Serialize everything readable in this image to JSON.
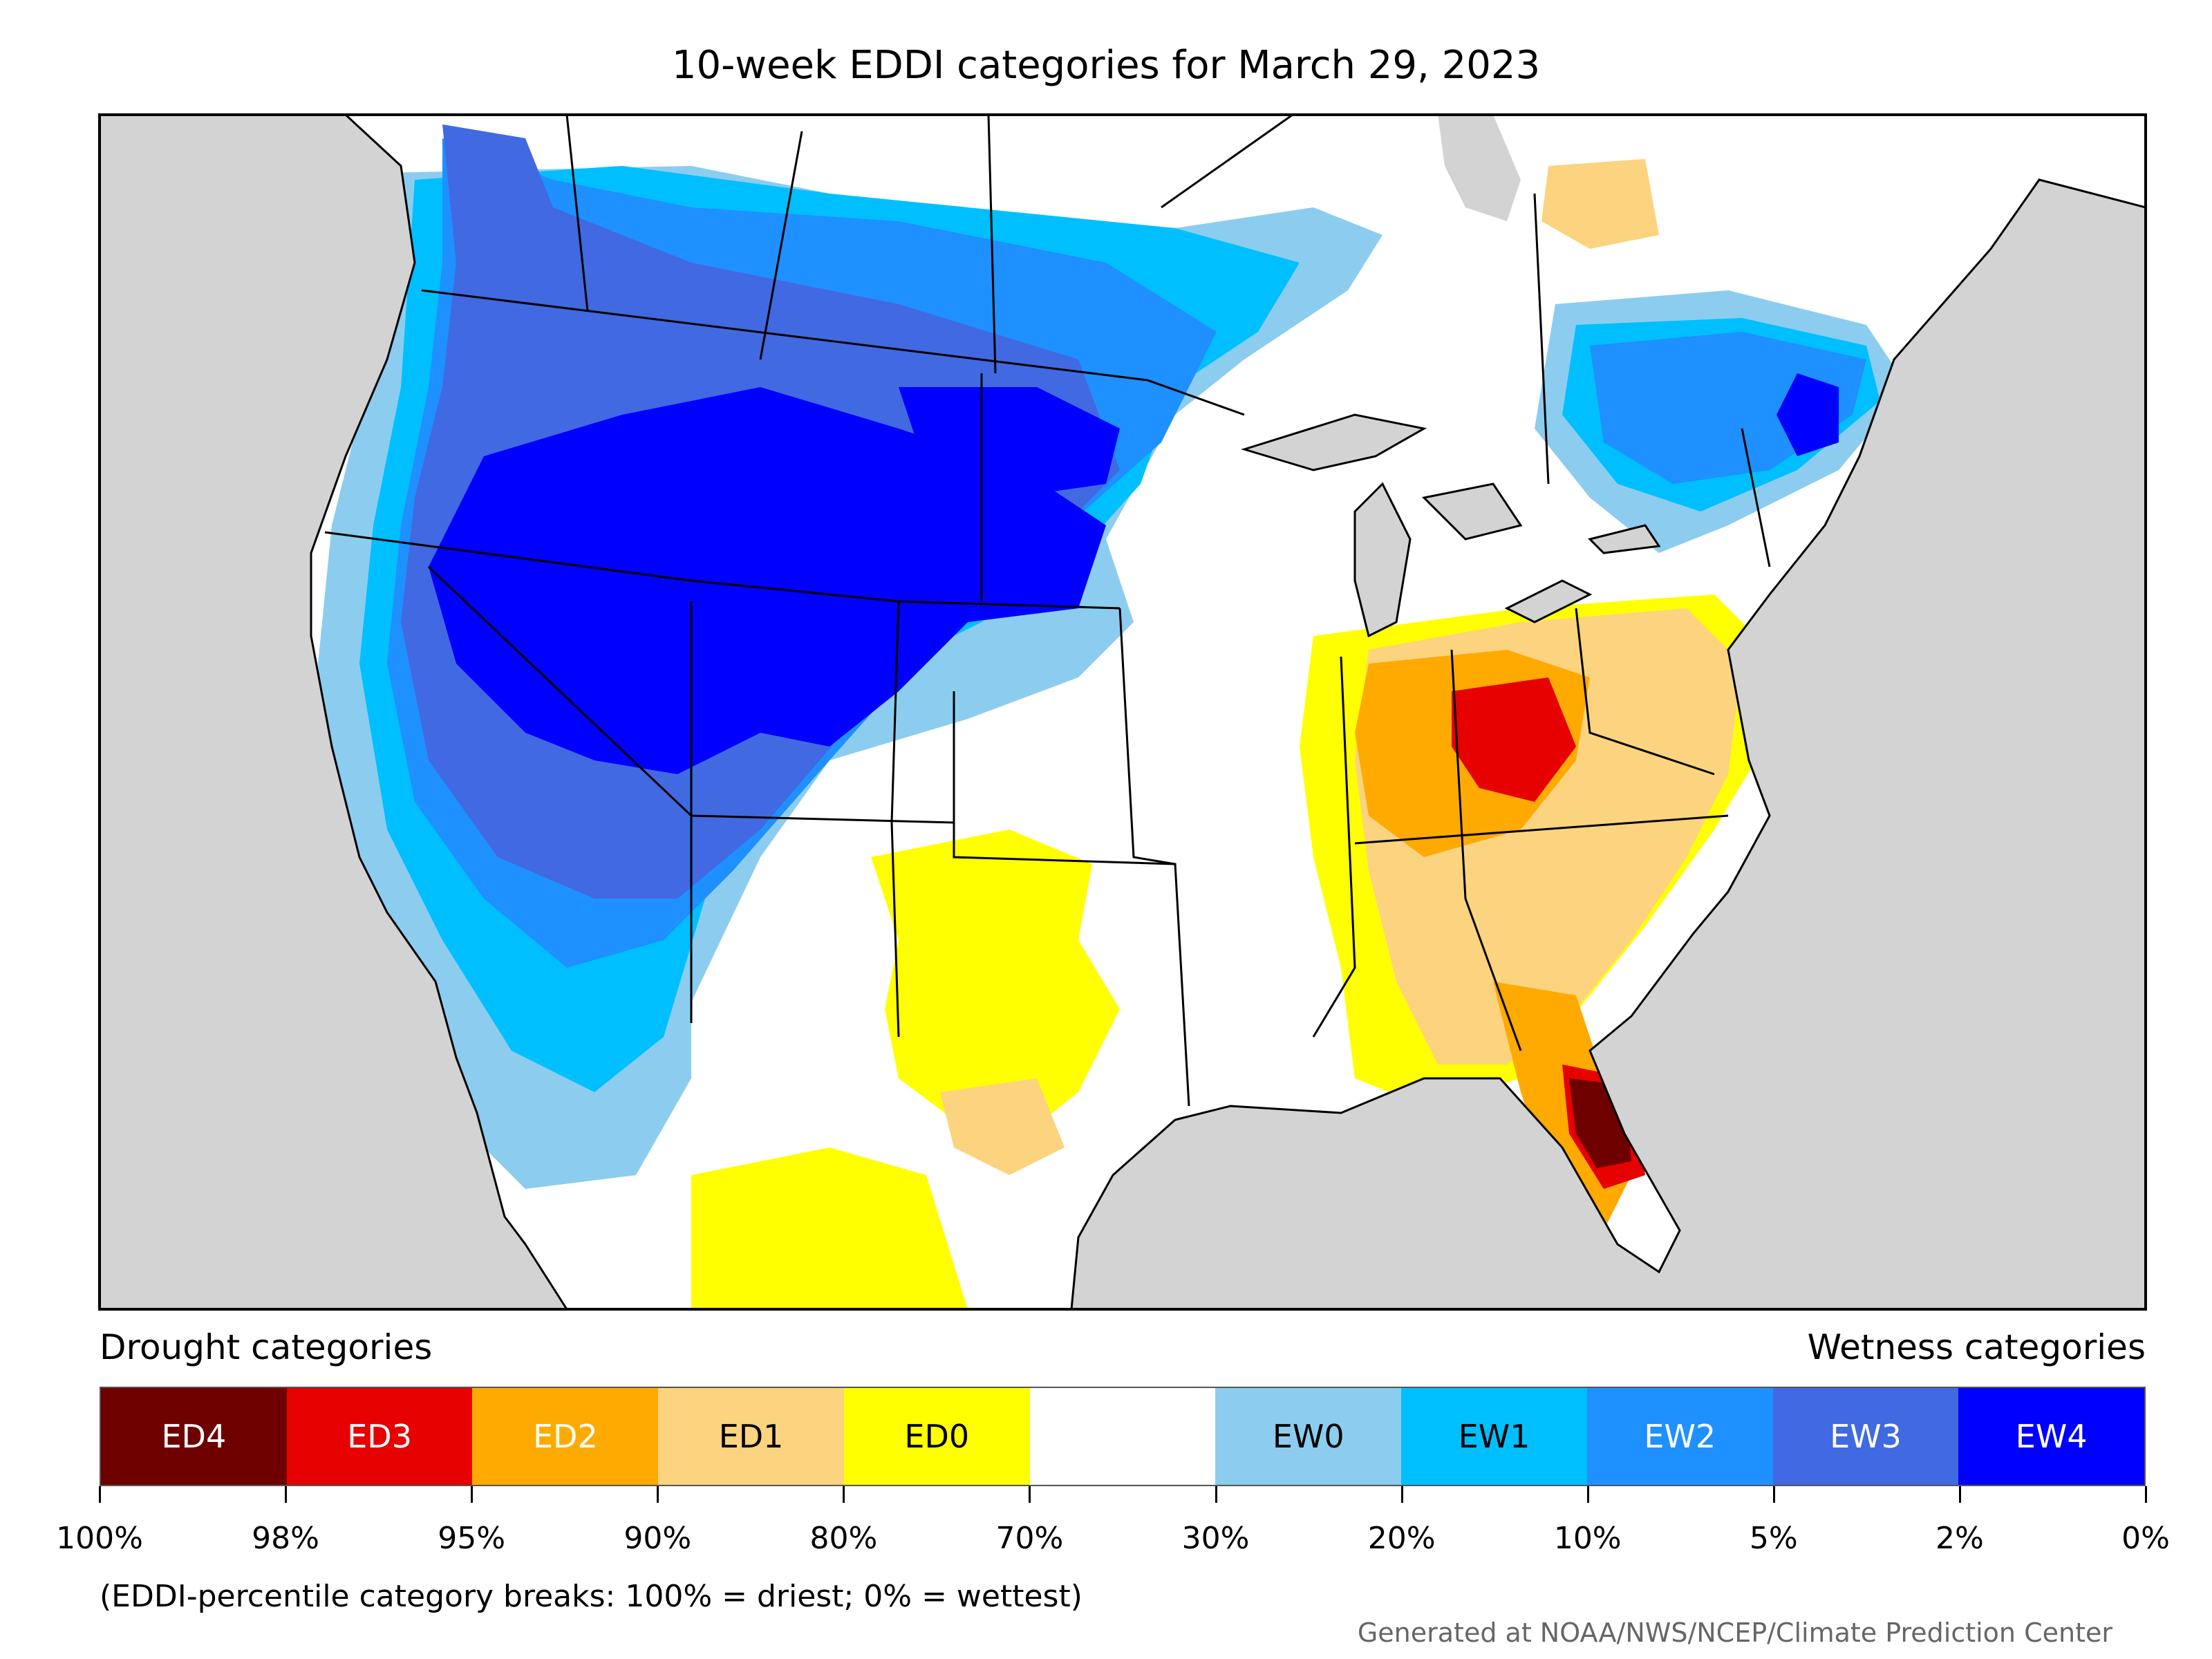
{
  "title": "10-week EDDI categories for March 29, 2023",
  "legend": {
    "drought_heading": "Drought categories",
    "wetness_heading": "Wetness categories",
    "categories": [
      {
        "label": "ED4",
        "color": "#6e0000",
        "text_color": "#ffffff"
      },
      {
        "label": "ED3",
        "color": "#e60000",
        "text_color": "#ffffff"
      },
      {
        "label": "ED2",
        "color": "#ffaa00",
        "text_color": "#ffffff"
      },
      {
        "label": "ED1",
        "color": "#fcd37f",
        "text_color": "#000000"
      },
      {
        "label": "ED0",
        "color": "#ffff00",
        "text_color": "#000000"
      },
      {
        "label": "",
        "color": "#ffffff",
        "text_color": "#000000"
      },
      {
        "label": "EW0",
        "color": "#8ccdef",
        "text_color": "#000000"
      },
      {
        "label": "EW1",
        "color": "#00bfff",
        "text_color": "#000000"
      },
      {
        "label": "EW2",
        "color": "#1e90ff",
        "text_color": "#ffffff"
      },
      {
        "label": "EW3",
        "color": "#4169e1",
        "text_color": "#ffffff"
      },
      {
        "label": "EW4",
        "color": "#0000ff",
        "text_color": "#ffffff"
      }
    ],
    "ticks": [
      "100%",
      "98%",
      "95%",
      "90%",
      "80%",
      "70%",
      "30%",
      "20%",
      "10%",
      "5%",
      "2%",
      "0%"
    ]
  },
  "footnote": "(EDDI-percentile category breaks: 100% = driest; 0% = wettest)",
  "credit": "Generated at NOAA/NWS/NCEP/Climate Prediction Center",
  "colors": {
    "ocean": "#d3d3d3",
    "lakes": "#d3d3d3",
    "neutral_land": "#ffffff",
    "border": "#000000"
  }
}
